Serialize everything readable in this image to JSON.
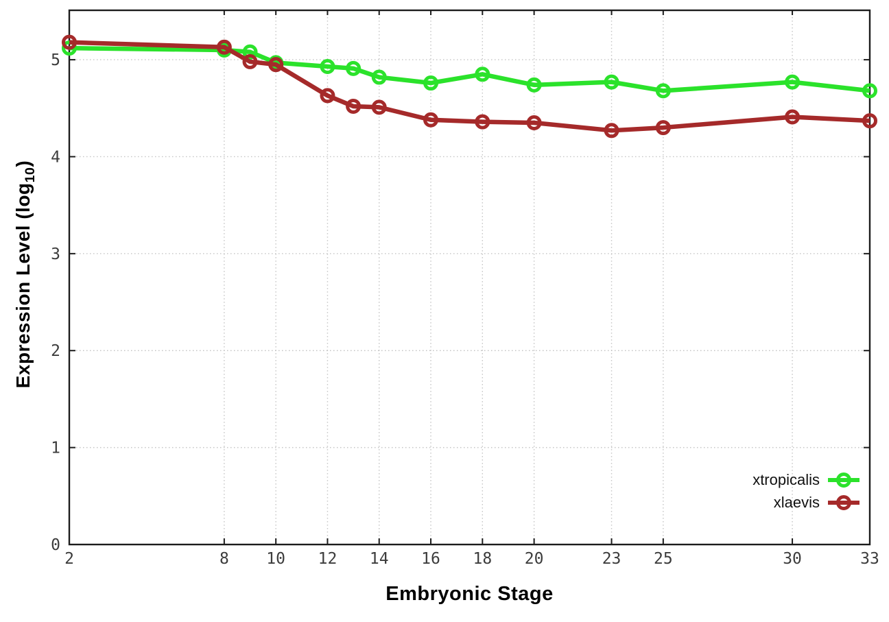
{
  "colors": {
    "background": "#ffffff",
    "frame": "#1c1c1c",
    "grid": "#c4c4c4",
    "tick_label": "#3c3c3c",
    "axis_label": "#000000",
    "legend_text": "#111111",
    "series_green": "#2be22b",
    "series_red": "#a52a2a"
  },
  "chart_data": {
    "type": "line",
    "title": "",
    "xlabel": "Embryonic Stage",
    "ylabel": "Expression Level (log10)",
    "ylabel_pre": "Expression Level (log",
    "ylabel_sub": "10",
    "ylabel_post": ")",
    "xlim": [
      2,
      33
    ],
    "ylim": [
      0,
      5.51
    ],
    "x_ticks": [
      2,
      8,
      10,
      12,
      14,
      16,
      18,
      20,
      23,
      25,
      30,
      33
    ],
    "y_ticks": [
      0,
      1,
      2,
      3,
      4,
      5
    ],
    "grid": true,
    "legend_position": "inside-bottom-right",
    "x": [
      2,
      8,
      9,
      10,
      12,
      13,
      14,
      16,
      18,
      20,
      23,
      25,
      30,
      33
    ],
    "series": [
      {
        "name": "xtropicalis",
        "color": "#2be22b",
        "marker": "open-circle",
        "values": [
          5.12,
          5.1,
          5.08,
          4.97,
          4.93,
          4.91,
          4.82,
          4.76,
          4.85,
          4.74,
          4.77,
          4.68,
          4.77,
          4.68
        ]
      },
      {
        "name": "xlaevis",
        "color": "#a52a2a",
        "marker": "open-circle",
        "values": [
          5.18,
          5.13,
          4.98,
          4.95,
          4.63,
          4.52,
          4.51,
          4.38,
          4.36,
          4.35,
          4.27,
          4.3,
          4.41,
          4.37
        ]
      }
    ]
  }
}
